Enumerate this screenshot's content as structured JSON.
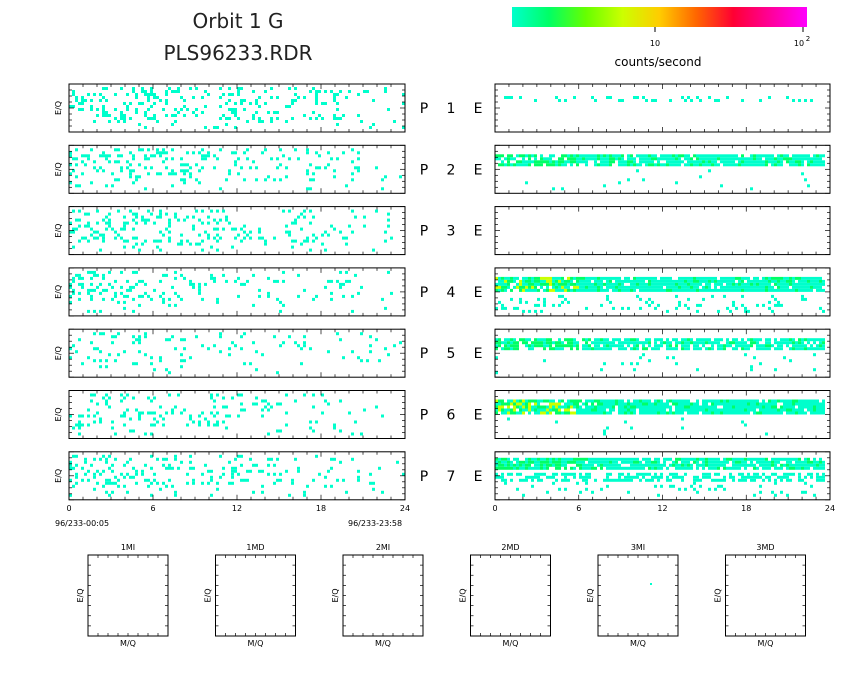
{
  "title": {
    "line1": "Orbit 1 G",
    "line2": "PLS96233.RDR"
  },
  "colorbar": {
    "tick_main": "10",
    "tick_exp_base": "10",
    "tick_exp_sup": "2",
    "label": "counts/second",
    "colors": [
      "#00ffcc",
      "#00ff66",
      "#66ff00",
      "#ccff00",
      "#ffcc00",
      "#ff6600",
      "#ff0033",
      "#ff0099",
      "#ff00ff"
    ]
  },
  "ylabel": "E/Q",
  "xlabel_small": "M/Q",
  "left_start_label": "96/233-00:05",
  "left_end_label": "96/233-23:58",
  "row_labels": [
    {
      "p": "P",
      "n": "1",
      "e": "E"
    },
    {
      "p": "P",
      "n": "2",
      "e": "E"
    },
    {
      "p": "P",
      "n": "3",
      "e": "E"
    },
    {
      "p": "P",
      "n": "4",
      "e": "E"
    },
    {
      "p": "P",
      "n": "5",
      "e": "E"
    },
    {
      "p": "P",
      "n": "6",
      "e": "E"
    },
    {
      "p": "P",
      "n": "7",
      "e": "E"
    }
  ],
  "small_panels": [
    "1MI",
    "1MD",
    "2MI",
    "2MD",
    "3MI",
    "3MD"
  ],
  "chart_data": {
    "type": "heatmap",
    "x_ticks": [
      "0",
      "6",
      "12",
      "18",
      "24"
    ],
    "xlim": [
      0,
      24
    ],
    "colorbar_scale": "log",
    "left_column_density": [
      0.28,
      0.22,
      0.26,
      0.18,
      0.12,
      0.16,
      0.2
    ],
    "right_column_band_density": [
      0.35,
      0.85,
      0.0,
      0.9,
      0.75,
      0.9,
      0.85
    ]
  }
}
